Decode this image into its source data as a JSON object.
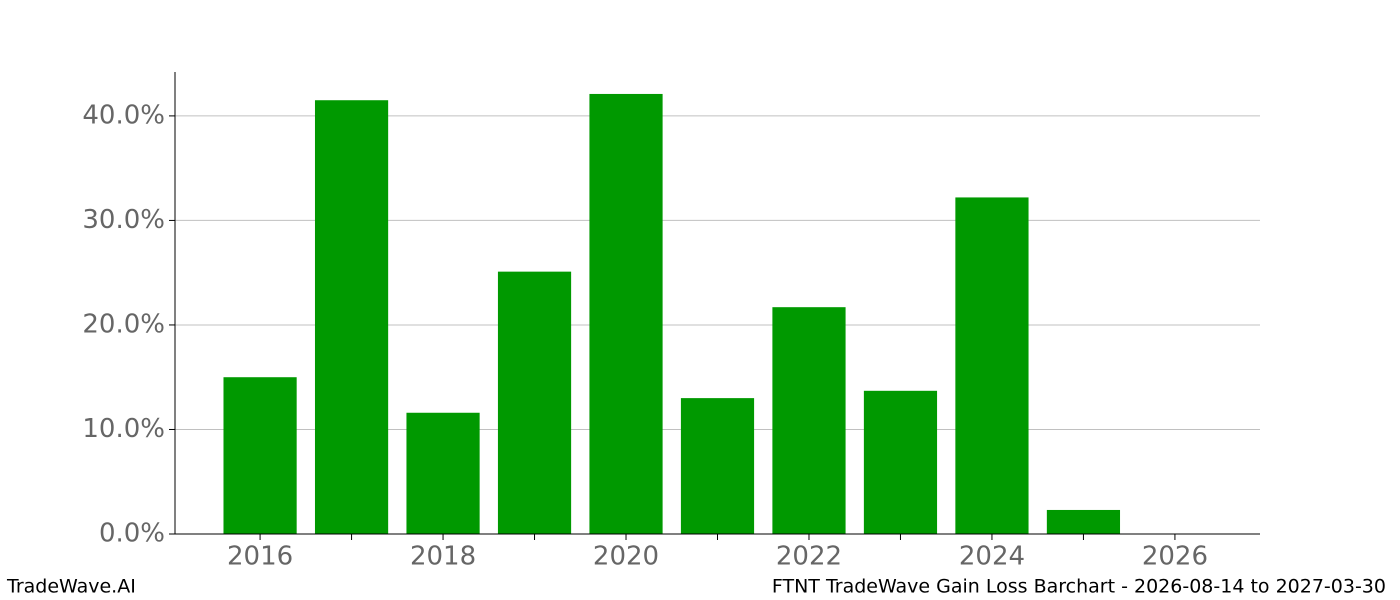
{
  "chart_data": {
    "type": "bar",
    "x": [
      2016,
      2017,
      2018,
      2019,
      2020,
      2021,
      2022,
      2023,
      2024,
      2025
    ],
    "values": [
      15.0,
      41.5,
      11.6,
      25.1,
      42.1,
      13.0,
      21.7,
      13.7,
      32.2,
      2.3
    ],
    "color": "#009900",
    "xlim": [
      2015.07,
      2026.93
    ],
    "xticks": [
      2016,
      2018,
      2020,
      2022,
      2024,
      2026
    ],
    "xminorticks": [
      2017,
      2019,
      2021,
      2023,
      2025
    ],
    "ylim": [
      0,
      44.2
    ],
    "yticks": [
      {
        "value": 0,
        "label": "0.0%"
      },
      {
        "value": 10,
        "label": "10.0%"
      },
      {
        "value": 20,
        "label": "20.0%"
      },
      {
        "value": 30,
        "label": "30.0%"
      },
      {
        "value": 40,
        "label": "40.0%"
      }
    ],
    "grid": true,
    "footer_left": "TradeWave.AI",
    "footer_right": "FTNT TradeWave Gain Loss Barchart - 2026-08-14 to 2027-03-30"
  }
}
